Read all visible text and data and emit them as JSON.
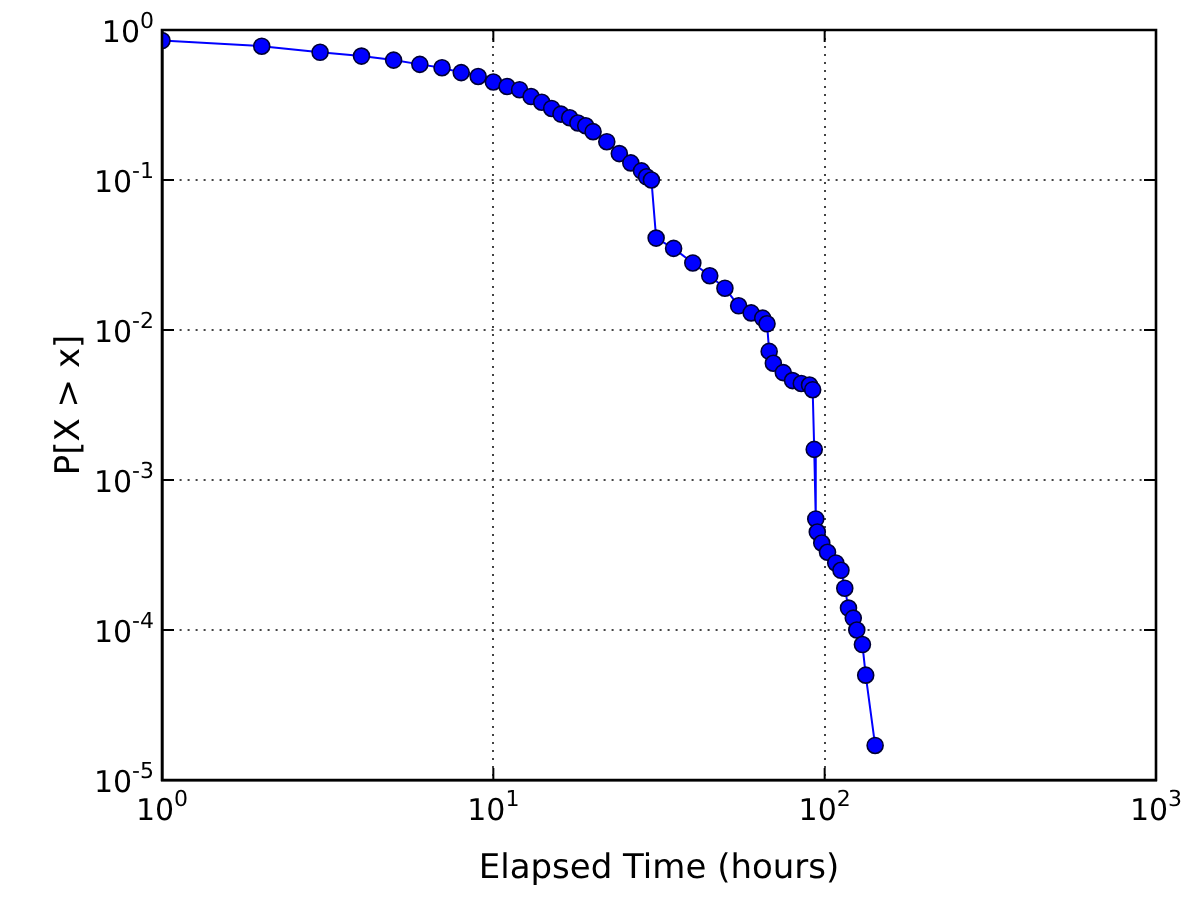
{
  "chart_data": {
    "type": "line",
    "xlabel": "Elapsed Time (hours)",
    "ylabel": "P[X > x]",
    "log": "xy",
    "grid": true,
    "marker": "circle",
    "line_style": "solid",
    "xlim": [
      1,
      1000
    ],
    "ylim": [
      1e-05,
      1
    ],
    "xticks": [
      {
        "value": 1,
        "label": "10$^{0}$"
      },
      {
        "value": 10,
        "label": "10$^{1}$"
      },
      {
        "value": 100,
        "label": "10$^{2}$"
      },
      {
        "value": 1000,
        "label": "10$^{3}$"
      }
    ],
    "yticks": [
      {
        "value": 1e-05,
        "label": "10$^{-5}$"
      },
      {
        "value": 0.0001,
        "label": "10$^{-4}$"
      },
      {
        "value": 0.001,
        "label": "10$^{-3}$"
      },
      {
        "value": 0.01,
        "label": "10$^{-2}$"
      },
      {
        "value": 0.1,
        "label": "10$^{-1}$"
      },
      {
        "value": 1,
        "label": "10$^{0}$"
      }
    ],
    "x": [
      1,
      2,
      3,
      4,
      5,
      6,
      7,
      8,
      9,
      10,
      11,
      12,
      13,
      14,
      15,
      16,
      17,
      18,
      19,
      20,
      22,
      24,
      26,
      28,
      29,
      30,
      31,
      35,
      40,
      45,
      50,
      55,
      60,
      65,
      67,
      68,
      70,
      75,
      80,
      85,
      90,
      92,
      93,
      94,
      95,
      98,
      102,
      108,
      112,
      115,
      118,
      122,
      125,
      130,
      133,
      142
    ],
    "series": [
      {
        "color": "#0000ff",
        "values": [
          0.85,
          0.78,
          0.71,
          0.67,
          0.63,
          0.59,
          0.56,
          0.52,
          0.49,
          0.45,
          0.42,
          0.4,
          0.36,
          0.33,
          0.3,
          0.275,
          0.26,
          0.24,
          0.23,
          0.21,
          0.18,
          0.15,
          0.13,
          0.115,
          0.105,
          0.1,
          0.041,
          0.035,
          0.028,
          0.023,
          0.019,
          0.0145,
          0.013,
          0.012,
          0.011,
          0.0072,
          0.006,
          0.0052,
          0.0046,
          0.0044,
          0.0043,
          0.004,
          0.0016,
          0.00055,
          0.00045,
          0.00038,
          0.00033,
          0.00028,
          0.00025,
          0.00019,
          0.00014,
          0.00012,
          0.0001,
          8e-05,
          5e-05,
          1.7e-05
        ]
      }
    ]
  }
}
